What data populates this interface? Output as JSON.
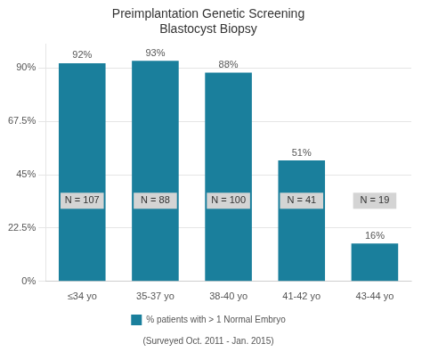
{
  "chart_data": {
    "type": "bar",
    "title": "Preimplantation Genetic Screening\nBlastocyst Biopsy",
    "subtitle": "(Surveyed Oct. 2011 - Jan. 2015)",
    "categories": [
      "≤34 yo",
      "35-37 yo",
      "38-40 yo",
      "41-42 yo",
      "43-44 yo"
    ],
    "series": [
      {
        "name": "% patients with > 1 Normal Embryo",
        "color": "#1a7f9c",
        "values": [
          92,
          93,
          88,
          51,
          16
        ],
        "value_labels": [
          "92%",
          "93%",
          "88%",
          "51%",
          "16%"
        ]
      }
    ],
    "annotations": [
      "N = 107",
      "N = 88",
      "N = 100",
      "N = 41",
      "N = 19"
    ],
    "data_labels": true,
    "ylim": [
      0,
      100
    ],
    "yticks": [
      {
        "value": 0,
        "label": "0%"
      },
      {
        "value": 22.5,
        "label": "22.5%"
      },
      {
        "value": 45,
        "label": "45%"
      },
      {
        "value": 67.5,
        "label": "67.5%"
      },
      {
        "value": 90,
        "label": "90%"
      }
    ],
    "grid": true,
    "legend": "bottom"
  }
}
